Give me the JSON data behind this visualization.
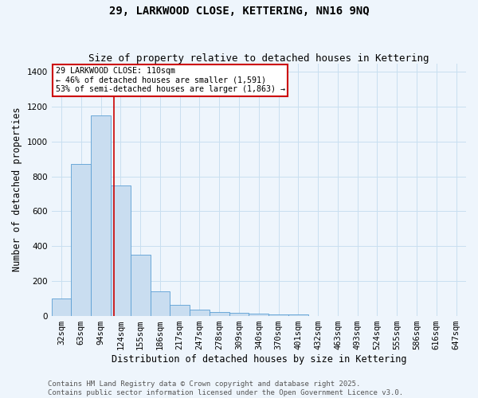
{
  "title": "29, LARKWOOD CLOSE, KETTERING, NN16 9NQ",
  "subtitle": "Size of property relative to detached houses in Kettering",
  "xlabel": "Distribution of detached houses by size in Kettering",
  "ylabel": "Number of detached properties",
  "categories": [
    "32sqm",
    "63sqm",
    "94sqm",
    "124sqm",
    "155sqm",
    "186sqm",
    "217sqm",
    "247sqm",
    "278sqm",
    "309sqm",
    "340sqm",
    "370sqm",
    "401sqm",
    "432sqm",
    "463sqm",
    "493sqm",
    "524sqm",
    "555sqm",
    "586sqm",
    "616sqm",
    "647sqm"
  ],
  "values": [
    100,
    870,
    1150,
    750,
    350,
    140,
    60,
    35,
    20,
    15,
    10,
    5,
    5,
    0,
    0,
    0,
    0,
    0,
    0,
    0,
    0
  ],
  "bar_color": "#c9ddf0",
  "bar_edge_color": "#5a9fd4",
  "red_line_x": 2.67,
  "red_line_color": "#cc0000",
  "annotation_text": "29 LARKWOOD CLOSE: 110sqm\n← 46% of detached houses are smaller (1,591)\n53% of semi-detached houses are larger (1,863) →",
  "annotation_box_color": "#ffffff",
  "annotation_box_edge": "#cc0000",
  "ylim": [
    0,
    1450
  ],
  "yticks": [
    0,
    200,
    400,
    600,
    800,
    1000,
    1200,
    1400
  ],
  "grid_color": "#c8dff0",
  "background_color": "#eef5fc",
  "footer_text": "Contains HM Land Registry data © Crown copyright and database right 2025.\nContains public sector information licensed under the Open Government Licence v3.0.",
  "title_fontsize": 10,
  "subtitle_fontsize": 9,
  "axis_label_fontsize": 8.5,
  "tick_fontsize": 7.5,
  "footer_fontsize": 6.5
}
